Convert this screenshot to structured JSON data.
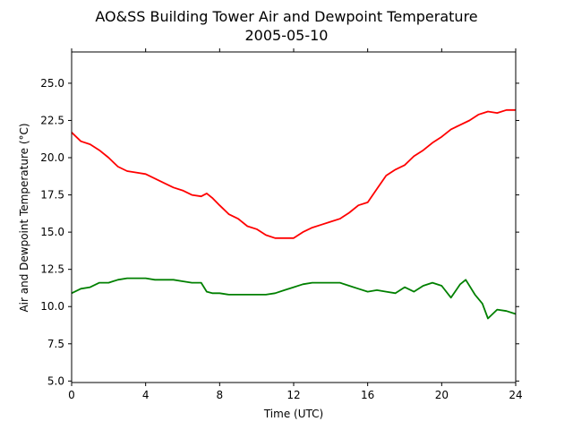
{
  "chart_data": {
    "type": "line",
    "title": "AO&SS Building Tower Air and Dewpoint Temperature",
    "subtitle": "2005-05-10",
    "xlabel": "Time (UTC)",
    "ylabel": "Air and Dewpoint Temperature (°C)",
    "xlim": [
      0,
      24
    ],
    "ylim": [
      4.9,
      27.1
    ],
    "xticks": [
      0,
      4,
      8,
      12,
      16,
      20,
      24
    ],
    "xtick_labels": [
      "0",
      "4",
      "8",
      "12",
      "16",
      "20",
      "24"
    ],
    "yticks": [
      5.0,
      7.5,
      10.0,
      12.5,
      15.0,
      17.5,
      20.0,
      22.5,
      25.0
    ],
    "ytick_labels": [
      "5.0",
      "7.5",
      "10.0",
      "12.5",
      "15.0",
      "17.5",
      "20.0",
      "22.5",
      "25.0"
    ],
    "grid": false,
    "series": [
      {
        "color": "#ff0000",
        "x": [
          0,
          0.5,
          1,
          1.5,
          2,
          2.5,
          3,
          3.5,
          4,
          4.5,
          5,
          5.5,
          6,
          6.5,
          7,
          7.3,
          7.6,
          8,
          8.5,
          9,
          9.5,
          10,
          10.5,
          11,
          11.5,
          12,
          12.5,
          13,
          13.5,
          14,
          14.5,
          15,
          15.5,
          16,
          16.5,
          17,
          17.5,
          18,
          18.5,
          19,
          19.5,
          20,
          20.5,
          21,
          21.5,
          22,
          22.5,
          23,
          23.5,
          24
        ],
        "y": [
          21.7,
          21.1,
          20.9,
          20.5,
          20.0,
          19.4,
          19.1,
          19.0,
          18.9,
          18.6,
          18.3,
          18.0,
          17.8,
          17.5,
          17.4,
          17.6,
          17.3,
          16.8,
          16.2,
          15.9,
          15.4,
          15.2,
          14.8,
          14.6,
          14.6,
          14.6,
          15.0,
          15.3,
          15.5,
          15.7,
          15.9,
          16.3,
          16.8,
          17.0,
          17.9,
          18.8,
          19.2,
          19.5,
          20.1,
          20.5,
          21.0,
          21.4,
          21.9,
          22.2,
          22.5,
          22.9,
          23.1,
          23.0,
          23.2,
          23.2
        ]
      },
      {
        "color": "#008000",
        "x": [
          0,
          0.5,
          1,
          1.5,
          2,
          2.5,
          3,
          3.5,
          4,
          4.5,
          5,
          5.5,
          6,
          6.5,
          7,
          7.3,
          7.6,
          8,
          8.5,
          9,
          9.5,
          10,
          10.5,
          11,
          11.5,
          12,
          12.5,
          13,
          13.5,
          14,
          14.5,
          15,
          15.5,
          16,
          16.5,
          17,
          17.5,
          18,
          18.5,
          19,
          19.5,
          20,
          20.5,
          21,
          21.3,
          21.8,
          22.2,
          22.5,
          23,
          23.5,
          24
        ],
        "y": [
          10.9,
          11.2,
          11.3,
          11.6,
          11.6,
          11.8,
          11.9,
          11.9,
          11.9,
          11.8,
          11.8,
          11.8,
          11.7,
          11.6,
          11.6,
          11.0,
          10.9,
          10.9,
          10.8,
          10.8,
          10.8,
          10.8,
          10.8,
          10.9,
          11.1,
          11.3,
          11.5,
          11.6,
          11.6,
          11.6,
          11.6,
          11.4,
          11.2,
          11.0,
          11.1,
          11.0,
          10.9,
          11.3,
          11.0,
          11.4,
          11.6,
          11.4,
          10.6,
          11.5,
          11.8,
          10.8,
          10.2,
          9.2,
          9.8,
          9.7,
          9.5
        ]
      }
    ]
  }
}
